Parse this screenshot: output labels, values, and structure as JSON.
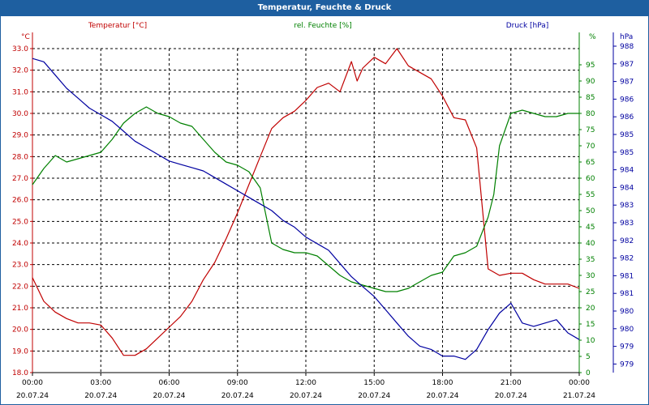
{
  "window": {
    "title": "Temperatur, Feuchte & Druck"
  },
  "colors": {
    "title_bg": "#1e5fa0",
    "temperature": "#c00000",
    "humidity": "#008000",
    "pressure": "#0000a0",
    "axis_text": "#000000",
    "grid": "#000000"
  },
  "chart_data": {
    "type": "line",
    "title": "Temperatur, Feuchte & Druck",
    "grid": true,
    "x": {
      "ticks": [
        {
          "time": "00:00",
          "date": "20.07.24"
        },
        {
          "time": "03:00",
          "date": "20.07.24"
        },
        {
          "time": "06:00",
          "date": "20.07.24"
        },
        {
          "time": "09:00",
          "date": "20.07.24"
        },
        {
          "time": "12:00",
          "date": "20.07.24"
        },
        {
          "time": "15:00",
          "date": "20.07.24"
        },
        {
          "time": "18:00",
          "date": "20.07.24"
        },
        {
          "time": "21:00",
          "date": "20.07.24"
        },
        {
          "time": "00:00",
          "date": "21.07.24"
        }
      ],
      "range_hours": [
        0,
        24
      ]
    },
    "axes": {
      "temperature": {
        "label": "Temperatur [°C]",
        "unit": "°C",
        "range": [
          18.0,
          33.0
        ],
        "ticks": [
          "33.0",
          "32.0",
          "31.0",
          "30.0",
          "29.0",
          "28.0",
          "27.0",
          "26.0",
          "25.0",
          "24.0",
          "23.0",
          "22.0",
          "21.0",
          "20.0",
          "19.0",
          "18.0"
        ]
      },
      "humidity": {
        "label": "rel. Feuchte [%]",
        "unit": "%",
        "range": [
          0,
          100
        ],
        "ticks": [
          "95",
          "90",
          "85",
          "80",
          "75",
          "70",
          "65",
          "60",
          "55",
          "50",
          "45",
          "40",
          "35",
          "30",
          "25",
          "20",
          "15",
          "10",
          "5",
          "0"
        ]
      },
      "pressure": {
        "label": "Druck [hPa]",
        "unit": "hPa",
        "range": [
          978.5,
          988.3
        ],
        "ticks": [
          "988",
          "987",
          "987",
          "986",
          "986",
          "985",
          "985",
          "984",
          "984",
          "983",
          "983",
          "982",
          "982",
          "981",
          "981",
          "980",
          "980",
          "979",
          "979"
        ]
      }
    },
    "series": [
      {
        "name": "Temperatur [°C]",
        "axis": "temperature",
        "color": "#c00000",
        "x": [
          0,
          0.5,
          1,
          1.5,
          2,
          2.5,
          3,
          3.5,
          4,
          4.5,
          5,
          5.5,
          6,
          6.5,
          7,
          7.5,
          8,
          8.5,
          9,
          9.5,
          10,
          10.5,
          11,
          11.5,
          12,
          12.5,
          13,
          13.5,
          14,
          14.25,
          14.5,
          15,
          15.5,
          16,
          16.5,
          17,
          17.5,
          18,
          18.5,
          19,
          19.5,
          20,
          20.5,
          21,
          21.5,
          22,
          22.5,
          23,
          23.5,
          24
        ],
        "values": [
          22.4,
          21.3,
          20.8,
          20.5,
          20.3,
          20.3,
          20.2,
          19.6,
          18.8,
          18.8,
          19.1,
          19.6,
          20.1,
          20.6,
          21.3,
          22.3,
          23.1,
          24.2,
          25.4,
          26.7,
          28.0,
          29.3,
          29.8,
          30.1,
          30.6,
          31.2,
          31.4,
          31.0,
          32.4,
          31.5,
          32.1,
          32.6,
          32.3,
          33.0,
          32.2,
          31.9,
          31.6,
          30.8,
          29.8,
          29.7,
          28.4,
          22.8,
          22.5,
          22.6,
          22.6,
          22.3,
          22.1,
          22.1,
          22.1,
          21.9
        ]
      },
      {
        "name": "rel. Feuchte [%]",
        "axis": "humidity",
        "color": "#008000",
        "x": [
          0,
          0.5,
          1,
          1.5,
          2,
          2.5,
          3,
          3.5,
          4,
          4.5,
          5,
          5.5,
          6,
          6.5,
          7,
          7.5,
          8,
          8.5,
          9,
          9.5,
          10,
          10.5,
          11,
          11.5,
          12,
          12.5,
          13,
          13.5,
          14,
          14.5,
          15,
          15.5,
          16,
          16.5,
          17,
          17.5,
          18,
          18.5,
          19,
          19.5,
          20,
          20.25,
          20.5,
          21,
          21.5,
          22,
          22.5,
          23,
          23.5,
          24
        ],
        "values": [
          58,
          63,
          67,
          65,
          66,
          67,
          68,
          72,
          77,
          80,
          82,
          80,
          79,
          77,
          76,
          72,
          68,
          65,
          64,
          62,
          57,
          40,
          38,
          37,
          37,
          36,
          33,
          30,
          28,
          27,
          26,
          25,
          25,
          26,
          28,
          30,
          31,
          36,
          37,
          39,
          48,
          55,
          70,
          80,
          81,
          80,
          79,
          79,
          80,
          80
        ]
      },
      {
        "name": "Druck [hPa]",
        "axis": "pressure",
        "color": "#0000a0",
        "x": [
          0,
          0.5,
          1,
          1.5,
          2,
          2.5,
          3,
          3.5,
          4,
          4.5,
          5,
          5.5,
          6,
          6.5,
          7,
          7.5,
          8,
          8.5,
          9,
          9.5,
          10,
          10.5,
          11,
          11.5,
          12,
          12.5,
          13,
          13.5,
          14,
          14.5,
          15,
          15.5,
          16,
          16.5,
          17,
          17.5,
          18,
          18.5,
          19,
          19.5,
          20,
          20.5,
          21,
          21.5,
          22,
          22.5,
          23,
          23.5,
          24
        ],
        "values": [
          988.0,
          987.9,
          987.5,
          987.1,
          986.8,
          986.5,
          986.3,
          986.1,
          985.8,
          985.5,
          985.3,
          985.1,
          984.9,
          984.8,
          984.7,
          984.6,
          984.4,
          984.2,
          984.0,
          983.8,
          983.6,
          983.4,
          983.1,
          982.9,
          982.6,
          982.4,
          982.2,
          981.8,
          981.4,
          981.1,
          980.8,
          980.4,
          980.0,
          979.6,
          979.3,
          979.2,
          979.0,
          979.0,
          978.9,
          979.2,
          979.8,
          980.3,
          980.6,
          980.0,
          979.9,
          980.0,
          980.1,
          979.7,
          979.5
        ]
      }
    ]
  }
}
